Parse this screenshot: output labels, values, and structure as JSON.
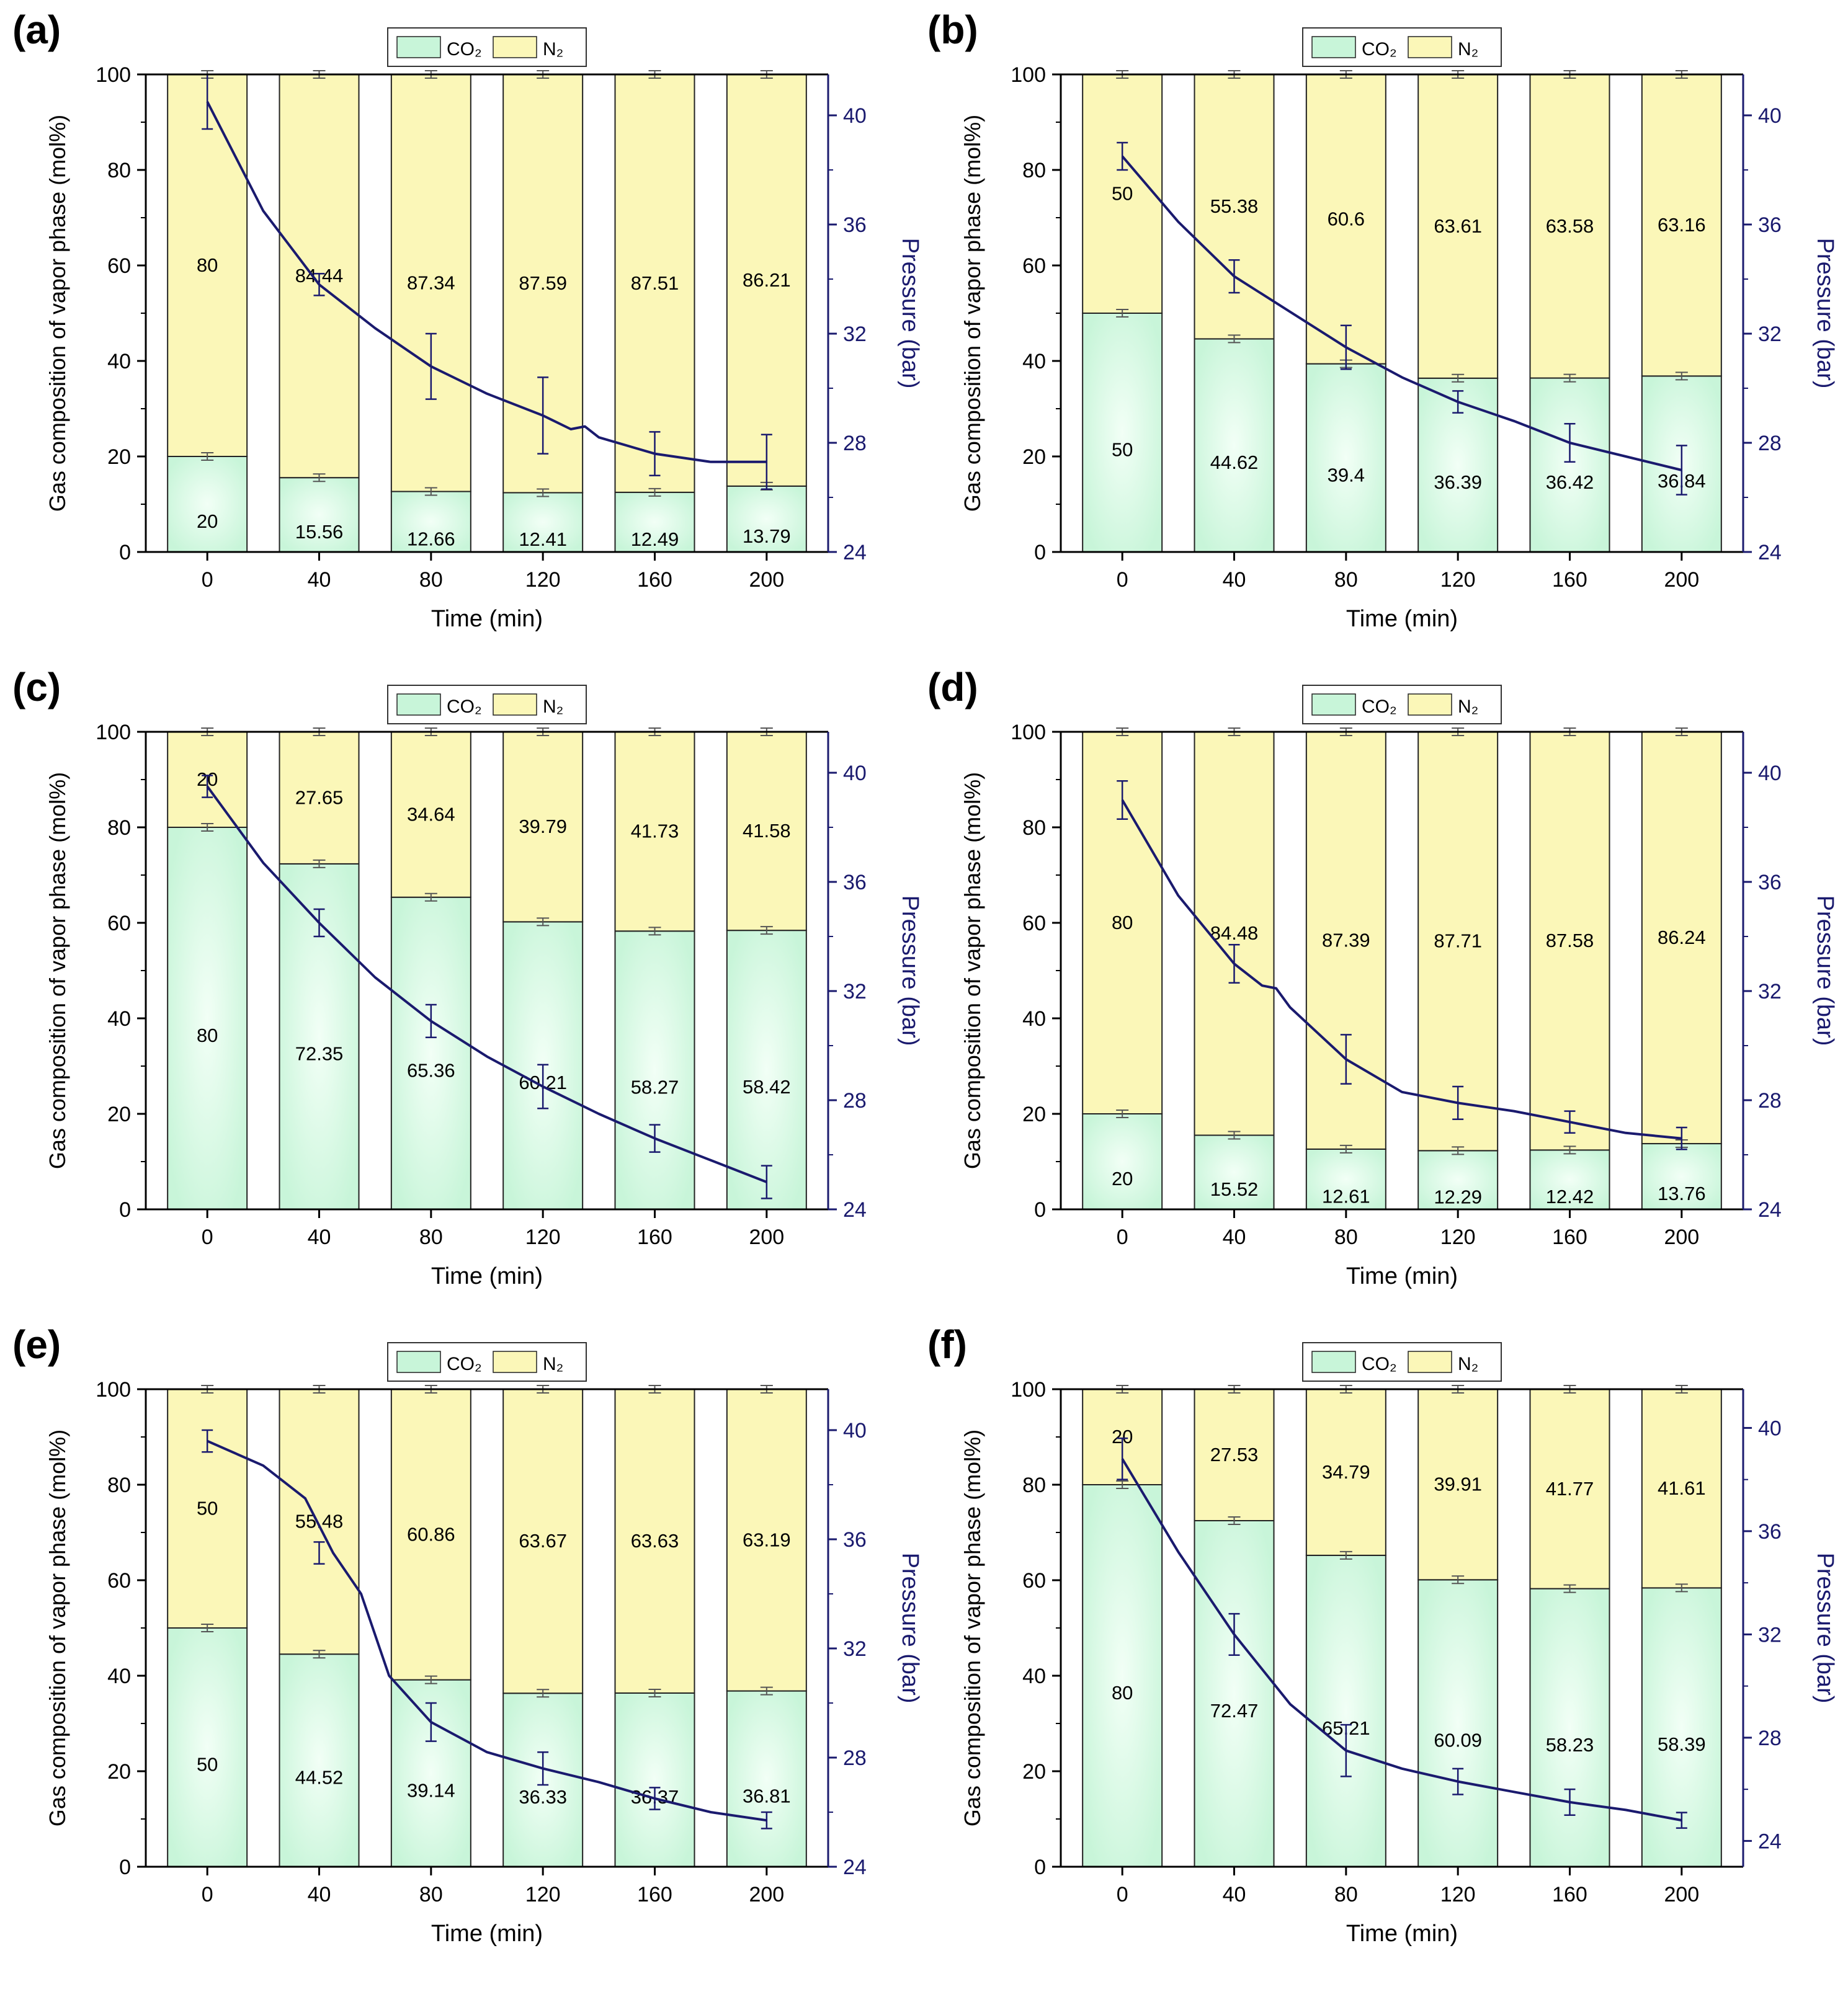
{
  "figure": {
    "x_axis_label": "Time (min)",
    "y_axis_label": "Gas composition of vapor phase (mol%)",
    "y2_axis_label": "Pressure (bar)",
    "legend": {
      "co2": "CO₂",
      "n2": "N₂"
    },
    "colors": {
      "co2": "#c8f5d9",
      "co2_center": "#f2fff6",
      "n2": "#fbf7b8",
      "pressure": "#1a1a6e",
      "errorbar": "#555555"
    }
  },
  "chart_data": [
    {
      "panel": "(a)",
      "type": "bar",
      "categories": [
        0,
        40,
        80,
        120,
        160,
        200
      ],
      "xlabel": "Time (min)",
      "ylabel": "Gas composition of vapor phase (mol%)",
      "ylim": [
        0,
        100
      ],
      "y2label": "Pressure (bar)",
      "y2lim": [
        24,
        41.5
      ],
      "series": [
        {
          "name": "CO₂",
          "values": [
            20,
            15.56,
            12.66,
            12.41,
            12.49,
            13.79
          ],
          "labels": [
            "20",
            "15.56",
            "12.66",
            "12.41",
            "12.49",
            "13.79"
          ]
        },
        {
          "name": "N₂",
          "values": [
            80,
            84.44,
            87.34,
            87.59,
            87.51,
            86.21
          ],
          "labels": [
            "80",
            "84.44",
            "87.34",
            "87.59",
            "87.51",
            "86.21"
          ]
        }
      ],
      "pressure": {
        "x": [
          0,
          20,
          40,
          60,
          80,
          100,
          120,
          130,
          135,
          140,
          160,
          180,
          200
        ],
        "y": [
          40.5,
          36.5,
          33.8,
          32.2,
          30.8,
          29.8,
          29.0,
          28.5,
          28.6,
          28.2,
          27.6,
          27.3,
          27.3
        ]
      },
      "pressure_errors": [
        {
          "x": 0,
          "y": 40.5,
          "e": 1.0
        },
        {
          "x": 40,
          "y": 33.8,
          "e": 0.4
        },
        {
          "x": 80,
          "y": 30.8,
          "e": 1.2
        },
        {
          "x": 120,
          "y": 29.0,
          "e": 1.4
        },
        {
          "x": 160,
          "y": 27.6,
          "e": 0.8
        },
        {
          "x": 200,
          "y": 27.3,
          "e": 1.0
        }
      ]
    },
    {
      "panel": "(b)",
      "type": "bar",
      "categories": [
        0,
        40,
        80,
        120,
        160,
        200
      ],
      "xlabel": "Time (min)",
      "ylabel": "Gas composition of vapor phase (mol%)",
      "ylim": [
        0,
        100
      ],
      "y2label": "Pressure (bar)",
      "y2lim": [
        24,
        41.5
      ],
      "series": [
        {
          "name": "CO₂",
          "values": [
            50,
            44.62,
            39.4,
            36.39,
            36.42,
            36.84
          ],
          "labels": [
            "50",
            "44.62",
            "39.4",
            "36.39",
            "36.42",
            "36.84"
          ]
        },
        {
          "name": "N₂",
          "values": [
            50,
            55.38,
            60.6,
            63.61,
            63.58,
            63.16
          ],
          "labels": [
            "50",
            "55.38",
            "60.6",
            "63.61",
            "63.58",
            "63.16"
          ]
        }
      ],
      "pressure": {
        "x": [
          0,
          20,
          40,
          60,
          80,
          100,
          120,
          140,
          160,
          180,
          200
        ],
        "y": [
          38.5,
          36.1,
          34.1,
          32.8,
          31.5,
          30.4,
          29.5,
          28.8,
          28.0,
          27.5,
          27.0
        ]
      },
      "pressure_errors": [
        {
          "x": 0,
          "y": 38.5,
          "e": 0.5
        },
        {
          "x": 40,
          "y": 34.1,
          "e": 0.6
        },
        {
          "x": 80,
          "y": 31.5,
          "e": 0.8
        },
        {
          "x": 120,
          "y": 29.5,
          "e": 0.4
        },
        {
          "x": 160,
          "y": 28.0,
          "e": 0.7
        },
        {
          "x": 200,
          "y": 27.0,
          "e": 0.9
        }
      ]
    },
    {
      "panel": "(c)",
      "type": "bar",
      "categories": [
        0,
        40,
        80,
        120,
        160,
        200
      ],
      "xlabel": "Time (min)",
      "ylabel": "Gas composition of vapor phase (mol%)",
      "ylim": [
        0,
        100
      ],
      "y2label": "Pressure (bar)",
      "y2lim": [
        24,
        41.5
      ],
      "series": [
        {
          "name": "CO₂",
          "values": [
            80,
            72.35,
            65.36,
            60.21,
            58.27,
            58.42
          ],
          "labels": [
            "80",
            "72.35",
            "65.36",
            "60.21",
            "58.27",
            "58.42"
          ]
        },
        {
          "name": "N₂",
          "values": [
            20,
            27.65,
            34.64,
            39.79,
            41.73,
            41.58
          ],
          "labels": [
            "20",
            "27.65",
            "34.64",
            "39.79",
            "41.73",
            "41.58"
          ]
        }
      ],
      "pressure": {
        "x": [
          0,
          20,
          40,
          60,
          80,
          100,
          120,
          140,
          160,
          180,
          200
        ],
        "y": [
          39.5,
          36.7,
          34.5,
          32.5,
          30.9,
          29.6,
          28.5,
          27.5,
          26.6,
          25.8,
          25.0
        ]
      },
      "pressure_errors": [
        {
          "x": 0,
          "y": 39.5,
          "e": 0.4
        },
        {
          "x": 40,
          "y": 34.5,
          "e": 0.5
        },
        {
          "x": 80,
          "y": 30.9,
          "e": 0.6
        },
        {
          "x": 120,
          "y": 28.5,
          "e": 0.8
        },
        {
          "x": 160,
          "y": 26.6,
          "e": 0.5
        },
        {
          "x": 200,
          "y": 25.0,
          "e": 0.6
        }
      ]
    },
    {
      "panel": "(d)",
      "type": "bar",
      "categories": [
        0,
        40,
        80,
        120,
        160,
        200
      ],
      "xlabel": "Time (min)",
      "ylabel": "Gas composition of vapor phase (mol%)",
      "ylim": [
        0,
        100
      ],
      "y2label": "Pressure (bar)",
      "y2lim": [
        24,
        41.5
      ],
      "series": [
        {
          "name": "CO₂",
          "values": [
            20,
            15.52,
            12.61,
            12.29,
            12.42,
            13.76
          ],
          "labels": [
            "20",
            "15.52",
            "12.61",
            "12.29",
            "12.42",
            "13.76"
          ]
        },
        {
          "name": "N₂",
          "values": [
            80,
            84.48,
            87.39,
            87.71,
            87.58,
            86.24
          ],
          "labels": [
            "80",
            "84.48",
            "87.39",
            "87.71",
            "87.58",
            "86.24"
          ]
        }
      ],
      "pressure": {
        "x": [
          0,
          20,
          40,
          50,
          55,
          60,
          80,
          100,
          120,
          140,
          160,
          180,
          200
        ],
        "y": [
          39.0,
          35.5,
          33.0,
          32.2,
          32.1,
          31.4,
          29.5,
          28.3,
          27.9,
          27.6,
          27.2,
          26.8,
          26.6
        ]
      },
      "pressure_errors": [
        {
          "x": 0,
          "y": 39.0,
          "e": 0.7
        },
        {
          "x": 40,
          "y": 33.0,
          "e": 0.7
        },
        {
          "x": 80,
          "y": 29.5,
          "e": 0.9
        },
        {
          "x": 120,
          "y": 27.9,
          "e": 0.6
        },
        {
          "x": 160,
          "y": 27.2,
          "e": 0.4
        },
        {
          "x": 200,
          "y": 26.6,
          "e": 0.4
        }
      ]
    },
    {
      "panel": "(e)",
      "type": "bar",
      "categories": [
        0,
        40,
        80,
        120,
        160,
        200
      ],
      "xlabel": "Time (min)",
      "ylabel": "Gas composition of vapor phase (mol%)",
      "ylim": [
        0,
        100
      ],
      "y2label": "Pressure (bar)",
      "y2lim": [
        24,
        41.5
      ],
      "series": [
        {
          "name": "CO₂",
          "values": [
            50,
            44.52,
            39.14,
            36.33,
            36.37,
            36.81
          ],
          "labels": [
            "50",
            "44.52",
            "39.14",
            "36.33",
            "36.37",
            "36.81"
          ]
        },
        {
          "name": "N₂",
          "values": [
            50,
            55.48,
            60.86,
            63.67,
            63.63,
            63.19
          ],
          "labels": [
            "50",
            "55.48",
            "60.86",
            "63.67",
            "63.63",
            "63.19"
          ]
        }
      ],
      "pressure": {
        "x": [
          0,
          20,
          35,
          45,
          55,
          65,
          80,
          100,
          120,
          140,
          160,
          180,
          200
        ],
        "y": [
          39.6,
          38.7,
          37.5,
          35.5,
          34.0,
          31.0,
          29.3,
          28.2,
          27.6,
          27.1,
          26.5,
          26.0,
          25.7
        ]
      },
      "pressure_errors": [
        {
          "x": 0,
          "y": 39.6,
          "e": 0.4
        },
        {
          "x": 40,
          "y": 35.5,
          "e": 0.4
        },
        {
          "x": 80,
          "y": 29.3,
          "e": 0.7
        },
        {
          "x": 120,
          "y": 27.6,
          "e": 0.6
        },
        {
          "x": 160,
          "y": 26.5,
          "e": 0.4
        },
        {
          "x": 200,
          "y": 25.7,
          "e": 0.3
        }
      ]
    },
    {
      "panel": "(f)",
      "type": "bar",
      "categories": [
        0,
        40,
        80,
        120,
        160,
        200
      ],
      "xlabel": "Time (min)",
      "ylabel": "Gas composition of vapor phase (mol%)",
      "ylim": [
        0,
        100
      ],
      "y2label": "Pressure (bar)",
      "y2lim": [
        23,
        41.5
      ],
      "series": [
        {
          "name": "CO₂",
          "values": [
            80,
            72.47,
            65.21,
            60.09,
            58.23,
            58.39
          ],
          "labels": [
            "80",
            "72.47",
            "65.21",
            "60.09",
            "58.23",
            "58.39"
          ]
        },
        {
          "name": "N₂",
          "values": [
            20,
            27.53,
            34.79,
            39.91,
            41.77,
            41.61
          ],
          "labels": [
            "20",
            "27.53",
            "34.79",
            "39.91",
            "41.77",
            "41.61"
          ]
        }
      ],
      "pressure": {
        "x": [
          0,
          20,
          40,
          60,
          80,
          100,
          120,
          140,
          160,
          180,
          200
        ],
        "y": [
          38.8,
          35.2,
          32.0,
          29.3,
          27.5,
          26.8,
          26.3,
          25.9,
          25.5,
          25.2,
          24.8
        ]
      },
      "pressure_errors": [
        {
          "x": 0,
          "y": 38.8,
          "e": 0.8
        },
        {
          "x": 40,
          "y": 32.0,
          "e": 0.8
        },
        {
          "x": 80,
          "y": 27.5,
          "e": 1.0
        },
        {
          "x": 120,
          "y": 26.3,
          "e": 0.5
        },
        {
          "x": 160,
          "y": 25.5,
          "e": 0.5
        },
        {
          "x": 200,
          "y": 24.8,
          "e": 0.3
        }
      ]
    }
  ]
}
